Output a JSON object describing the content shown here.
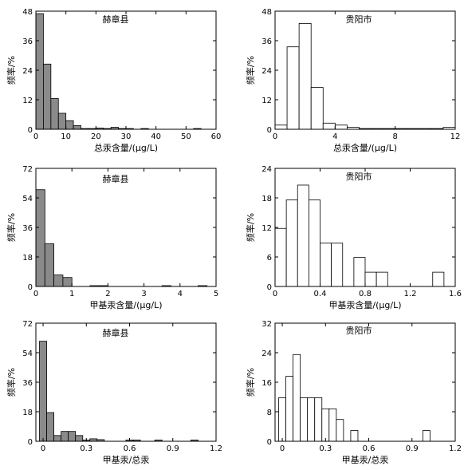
{
  "chart_data": [
    {
      "type": "bar",
      "title": "赫章县",
      "xlabel": "总汞含量/(μg/L)",
      "ylabel": "频率/%",
      "xlim": [
        0,
        60
      ],
      "ylim": [
        0,
        48
      ],
      "xticks": [
        0,
        10,
        20,
        30,
        40,
        50,
        60
      ],
      "yticks": [
        0,
        12,
        24,
        36,
        48
      ],
      "xtick_labels": [
        "0",
        "10",
        "20",
        "30",
        "40",
        "50",
        "60"
      ],
      "ytick_labels": [
        "0",
        "12",
        "24",
        "36",
        "48"
      ],
      "bar_fill": "#8a8a8a",
      "bins": [
        [
          0,
          2.5,
          47
        ],
        [
          2.5,
          5,
          26.5
        ],
        [
          5,
          7.5,
          12.5
        ],
        [
          7.5,
          10,
          6.5
        ],
        [
          10,
          12.5,
          3.5
        ],
        [
          12.5,
          15,
          1.5
        ],
        [
          15,
          17.5,
          0.3
        ],
        [
          17.5,
          20,
          0.3
        ],
        [
          20,
          22.5,
          0.5
        ],
        [
          22.5,
          25,
          0.3
        ],
        [
          25,
          27.5,
          0.8
        ],
        [
          27.5,
          30,
          0.3
        ],
        [
          30,
          32.5,
          0.3
        ],
        [
          35,
          37.5,
          0.3
        ],
        [
          52.5,
          55,
          0.3
        ]
      ]
    },
    {
      "type": "bar",
      "title": "贵阳市",
      "xlabel": "总汞含量/(μg/L)",
      "ylabel": "频率/%",
      "xlim": [
        0,
        12
      ],
      "ylim": [
        0,
        48
      ],
      "xticks": [
        0,
        4,
        8,
        12
      ],
      "yticks": [
        0,
        12,
        24,
        36,
        48
      ],
      "xtick_labels": [
        "0",
        "4",
        "8",
        "12"
      ],
      "ytick_labels": [
        "0",
        "12",
        "24",
        "36",
        "48"
      ],
      "bar_fill": "#ffffff",
      "bins": [
        [
          0,
          0.8,
          1.7
        ],
        [
          0.8,
          1.6,
          33.5
        ],
        [
          1.6,
          2.4,
          43
        ],
        [
          2.4,
          3.2,
          17
        ],
        [
          3.2,
          4.0,
          2.5
        ],
        [
          4.0,
          4.8,
          1.7
        ],
        [
          4.8,
          5.6,
          0.8
        ],
        [
          5.6,
          6.4,
          0.3
        ],
        [
          6.4,
          7.2,
          0.3
        ],
        [
          7.2,
          8.0,
          0.3
        ],
        [
          8.0,
          8.8,
          0.3
        ],
        [
          8.8,
          9.6,
          0.3
        ],
        [
          9.6,
          10.4,
          0.3
        ],
        [
          10.4,
          11.2,
          0.3
        ],
        [
          11.2,
          12.0,
          0.8
        ]
      ]
    },
    {
      "type": "bar",
      "title": "赫章县",
      "xlabel": "甲基汞含量/(μg/L)",
      "ylabel": "频率/%",
      "xlim": [
        0,
        5
      ],
      "ylim": [
        0,
        72
      ],
      "xticks": [
        0,
        1,
        2,
        3,
        4,
        5
      ],
      "yticks": [
        0,
        18,
        36,
        54,
        72
      ],
      "xtick_labels": [
        "0",
        "1",
        "2",
        "3",
        "4",
        "5"
      ],
      "ytick_labels": [
        "0",
        "18",
        "36",
        "54",
        "72"
      ],
      "bar_fill": "#8a8a8a",
      "bins": [
        [
          0,
          0.25,
          59
        ],
        [
          0.25,
          0.5,
          26
        ],
        [
          0.5,
          0.75,
          7
        ],
        [
          0.75,
          1.0,
          5.5
        ],
        [
          1.5,
          1.75,
          0.5
        ],
        [
          1.75,
          2.0,
          0.5
        ],
        [
          3.5,
          3.75,
          0.5
        ],
        [
          4.5,
          4.75,
          0.5
        ]
      ]
    },
    {
      "type": "bar",
      "title": "贵阳市",
      "xlabel": "甲基汞含量/(μg/L)",
      "ylabel": "频率/%",
      "xlim": [
        0,
        1.6
      ],
      "ylim": [
        0,
        24
      ],
      "xticks": [
        0,
        0.4,
        0.8,
        1.2,
        1.6
      ],
      "yticks": [
        0,
        6,
        12,
        18,
        24
      ],
      "xtick_labels": [
        "0",
        "0.4",
        "0.8",
        "1.2",
        "1.6"
      ],
      "ytick_labels": [
        "0",
        "6",
        "12",
        "18",
        "24"
      ],
      "bar_fill": "#ffffff",
      "bins": [
        [
          0,
          0.1,
          11.8
        ],
        [
          0.1,
          0.2,
          17.6
        ],
        [
          0.2,
          0.3,
          20.6
        ],
        [
          0.3,
          0.4,
          17.6
        ],
        [
          0.4,
          0.5,
          8.8
        ],
        [
          0.5,
          0.6,
          8.8
        ],
        [
          0.7,
          0.8,
          5.9
        ],
        [
          0.8,
          0.9,
          2.9
        ],
        [
          0.9,
          1.0,
          2.9
        ],
        [
          1.4,
          1.5,
          2.9
        ]
      ]
    },
    {
      "type": "bar",
      "title": "赫章县",
      "xlabel": "甲基汞/总汞",
      "ylabel": "频率/%",
      "xlim": [
        -0.05,
        1.2
      ],
      "ylim": [
        0,
        72
      ],
      "xticks": [
        0,
        0.3,
        0.6,
        0.9,
        1.2
      ],
      "yticks": [
        0,
        18,
        36,
        54,
        72
      ],
      "xtick_labels": [
        "0",
        "0.3",
        "0.6",
        "0.9",
        "1.2"
      ],
      "ytick_labels": [
        "0",
        "18",
        "36",
        "54",
        "72"
      ],
      "bar_fill": "#8a8a8a",
      "bins": [
        [
          -0.025,
          0.025,
          61
        ],
        [
          0.025,
          0.075,
          17.5
        ],
        [
          0.075,
          0.125,
          3.5
        ],
        [
          0.125,
          0.175,
          6
        ],
        [
          0.175,
          0.225,
          6
        ],
        [
          0.225,
          0.275,
          3.5
        ],
        [
          0.275,
          0.325,
          0.8
        ],
        [
          0.325,
          0.375,
          1.5
        ],
        [
          0.375,
          0.425,
          1
        ],
        [
          0.575,
          0.625,
          0.8
        ],
        [
          0.625,
          0.675,
          0.8
        ],
        [
          0.775,
          0.825,
          0.8
        ],
        [
          1.025,
          1.075,
          0.8
        ]
      ]
    },
    {
      "type": "bar",
      "title": "贵阳市",
      "xlabel": "甲基汞/总汞",
      "ylabel": "频率/%",
      "xlim": [
        -0.05,
        1.2
      ],
      "ylim": [
        0,
        32
      ],
      "xticks": [
        0,
        0.3,
        0.6,
        0.9,
        1.2
      ],
      "yticks": [
        0,
        8,
        16,
        24,
        32
      ],
      "xtick_labels": [
        "0",
        "0.3",
        "0.6",
        "0.9",
        "1.2"
      ],
      "ytick_labels": [
        "0",
        "8",
        "16",
        "24",
        "32"
      ],
      "bar_fill": "#ffffff",
      "bins": [
        [
          -0.025,
          0.025,
          11.8
        ],
        [
          0.025,
          0.075,
          17.6
        ],
        [
          0.075,
          0.125,
          23.5
        ],
        [
          0.125,
          0.175,
          11.8
        ],
        [
          0.175,
          0.225,
          11.8
        ],
        [
          0.225,
          0.275,
          11.8
        ],
        [
          0.275,
          0.325,
          8.8
        ],
        [
          0.325,
          0.375,
          8.8
        ],
        [
          0.375,
          0.425,
          5.9
        ],
        [
          0.475,
          0.525,
          2.9
        ],
        [
          0.975,
          1.025,
          2.9
        ]
      ]
    }
  ]
}
